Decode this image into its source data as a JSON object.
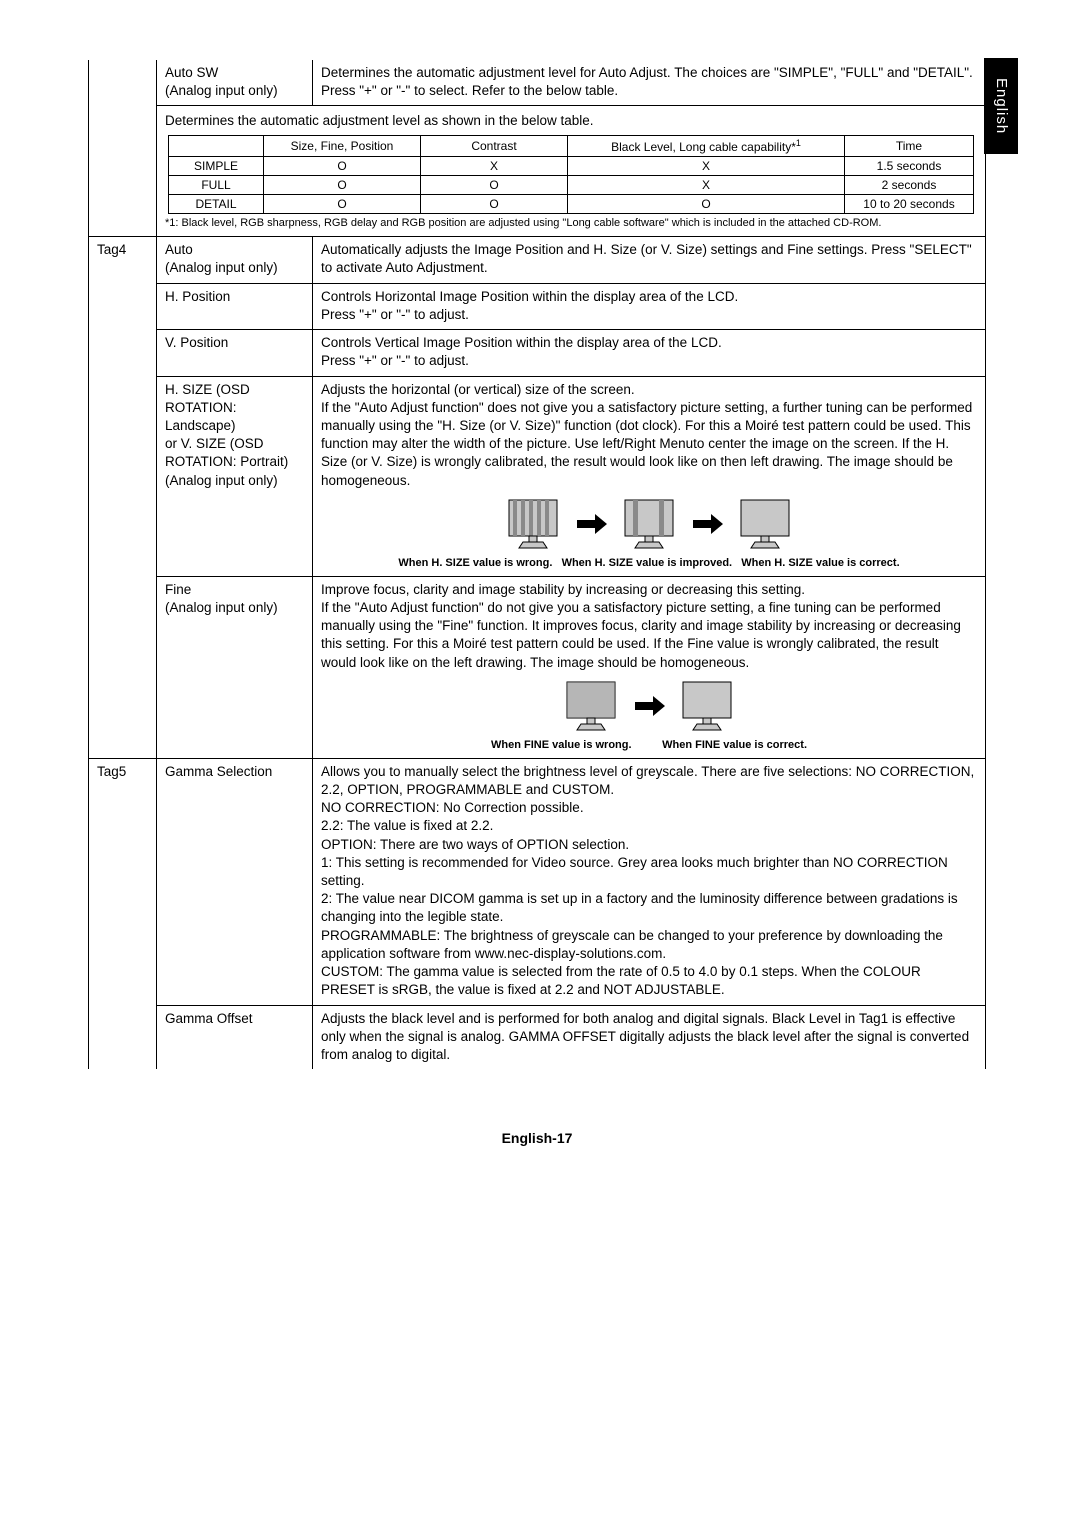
{
  "side_tab": "English",
  "footer": "English-17",
  "row_autosw": {
    "name": "Auto SW\n(Analog input only)",
    "desc": "Determines the automatic adjustment level for Auto Adjust. The choices are \"SIMPLE\", \"FULL\" and \"DETAIL\". Press \"+\" or \"-\" to select. Refer to the below table."
  },
  "table_intro": "Determines the automatic adjustment level as shown in the below table.",
  "inner_table": {
    "headers": [
      "",
      "Size, Fine, Position",
      "Contrast",
      "Black Level, Long cable capability*1",
      "Time"
    ],
    "rows": [
      [
        "SIMPLE",
        "O",
        "X",
        "X",
        "1.5 seconds"
      ],
      [
        "FULL",
        "O",
        "O",
        "X",
        "2 seconds"
      ],
      [
        "DETAIL",
        "O",
        "O",
        "O",
        "10 to 20 seconds"
      ]
    ],
    "footnote": "*1: Black level, RGB sharpness, RGB delay and RGB position are adjusted using \"Long cable software\" which is included in the attached CD-ROM."
  },
  "tag4": {
    "tag": "Tag4",
    "auto": {
      "name": "Auto\n(Analog input only)",
      "desc": "Automatically adjusts the Image Position and H. Size (or V. Size) settings and Fine settings. Press \"SELECT\" to activate Auto Adjustment."
    },
    "hpos": {
      "name": "H. Position",
      "desc": "Controls Horizontal Image Position within the display area of the LCD.\nPress \"+\" or \"-\" to adjust."
    },
    "vpos": {
      "name": "V. Position",
      "desc": "Controls Vertical Image Position within the display area of the LCD.\nPress \"+\" or \"-\" to adjust."
    },
    "hsize": {
      "name": "H. SIZE (OSD ROTATION: Landscape)\nor V. SIZE (OSD ROTATION: Portrait)\n(Analog input only)",
      "desc": "Adjusts the horizontal (or vertical) size of the screen.\nIf the \"Auto Adjust function\" does not give you a satisfactory picture setting, a  further tuning can be performed manually using the \"H. Size (or V. Size)\" function (dot clock). For this a Moiré test pattern could be used. This function may alter the width of the picture. Use left/Right Menuto center the image on the screen. If the H. Size (or V. Size) is wrongly calibrated, the result would look like on then left drawing. The image should be homogeneous.",
      "cap1": "When H. SIZE value is wrong.",
      "cap2": "When H. SIZE value is improved.",
      "cap3": "When H. SIZE value is correct."
    },
    "fine": {
      "name": "Fine\n(Analog input only)",
      "desc": "Improve focus, clarity and image stability by increasing or decreasing this setting.\nIf the \"Auto Adjust function\" do not give you a satisfactory picture setting, a fine tuning can be performed manually using the \"Fine\" function. It improves focus, clarity and image stability by increasing or decreasing this setting. For this a Moiré test pattern could be used. If the Fine value is wrongly calibrated, the result would look like on the left drawing. The image should be homogeneous.",
      "cap1": "When FINE value is wrong.",
      "cap2": "When FINE value is correct."
    }
  },
  "tag5": {
    "tag": "Tag5",
    "gamma_sel": {
      "name": "Gamma Selection",
      "desc": "Allows you to manually select the brightness level of greyscale. There are five selections: NO CORRECTION, 2.2, OPTION, PROGRAMMABLE and CUSTOM.\nNO CORRECTION: No Correction possible.\n2.2: The value is fixed at 2.2.\nOPTION: There are two ways of OPTION selection.\n1: This setting is recommended for Video source. Grey area looks much brighter than NO CORRECTION setting.\n2: The value near DICOM gamma is set up in a factory and the luminosity difference between gradations is changing into the legible state.\nPROGRAMMABLE: The brightness of greyscale can be changed to your preference by downloading the application software from www.nec-display-solutions.com.\nCUSTOM: The gamma value is selected from the rate of 0.5 to 4.0 by 0.1 steps. When the COLOUR PRESET is sRGB, the value is fixed at 2.2 and NOT ADJUSTABLE."
    },
    "gamma_off": {
      "name": "Gamma Offset",
      "desc": "Adjusts the black level and is performed for both analog and digital signals. Black Level in Tag1 is effective only when the signal is analog. GAMMA OFFSET digitally adjusts the black level after the signal is converted from analog to digital."
    }
  },
  "diagrams": {
    "arrow_color": "#000000",
    "screen_fill": "#c8c8c8",
    "screen_stroke": "#000000",
    "stripe_fill": "#8a8a8a"
  }
}
